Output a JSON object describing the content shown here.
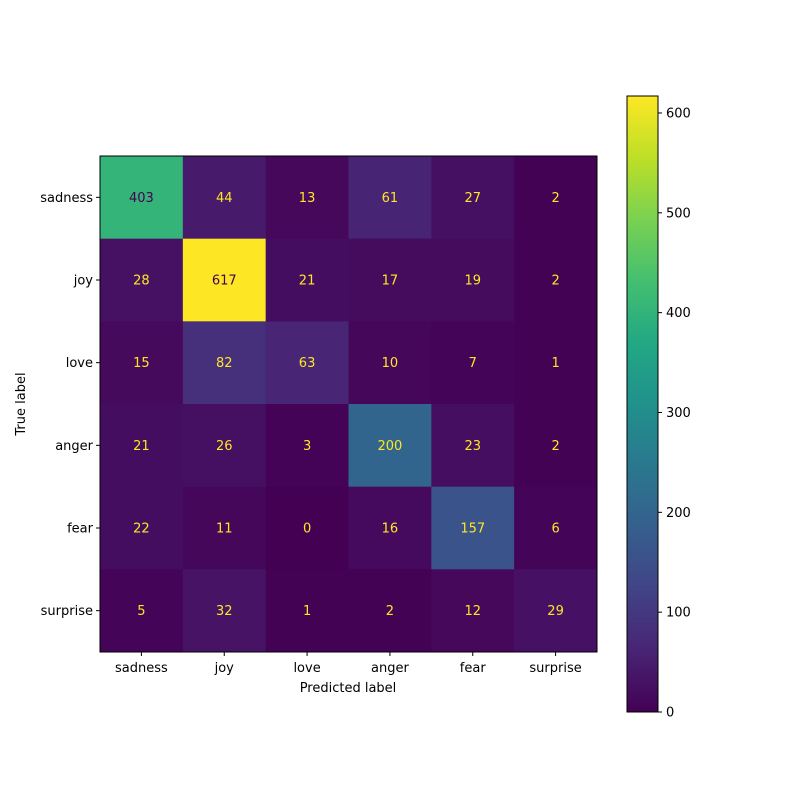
{
  "chart_data": {
    "type": "heatmap",
    "title": "",
    "xlabel": "Predicted label",
    "ylabel": "True label",
    "x_categories": [
      "sadness",
      "joy",
      "love",
      "anger",
      "fear",
      "surprise"
    ],
    "y_categories": [
      "sadness",
      "joy",
      "love",
      "anger",
      "fear",
      "surprise"
    ],
    "values": [
      [
        403,
        44,
        13,
        61,
        27,
        2
      ],
      [
        28,
        617,
        21,
        17,
        19,
        2
      ],
      [
        15,
        82,
        63,
        10,
        7,
        1
      ],
      [
        21,
        26,
        3,
        200,
        23,
        2
      ],
      [
        22,
        11,
        0,
        16,
        157,
        6
      ],
      [
        5,
        32,
        1,
        2,
        12,
        29
      ]
    ],
    "colormap": "viridis",
    "colorbar": {
      "range": [
        0,
        617
      ],
      "ticks": [
        0,
        100,
        200,
        300,
        400,
        500,
        600
      ],
      "location": "right"
    },
    "colors": {
      "low": "#440154",
      "high": "#fde725"
    },
    "grid": false
  }
}
